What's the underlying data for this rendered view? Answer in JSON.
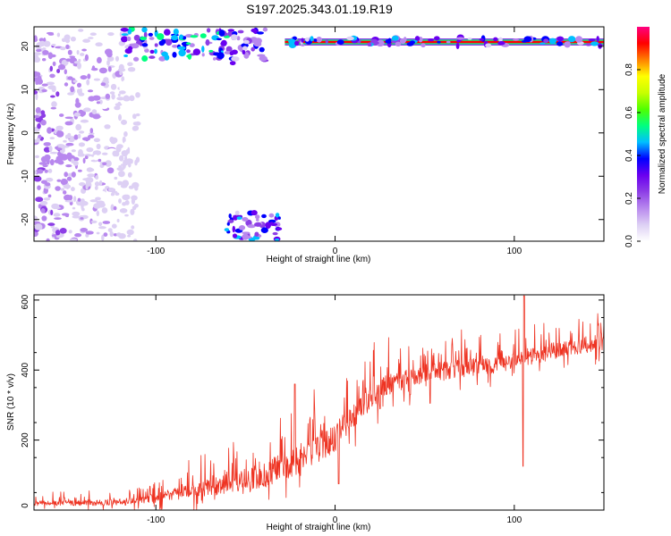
{
  "title": "S197.2025.343.01.19.R19",
  "colors": {
    "snr_line": "#ee3322",
    "background": "#ffffff",
    "colormap": [
      "#ffffff",
      "#ddd0f4",
      "#b888ee",
      "#8d3ee6",
      "#6a00f0",
      "#0000ff",
      "#00bfff",
      "#00ff80",
      "#50ff00",
      "#c8ff00",
      "#ffff00",
      "#ff8000",
      "#ff0000",
      "#ff0080"
    ]
  },
  "chart_data": [
    {
      "type": "heatmap",
      "name": "spectrogram",
      "title": "S197.2025.343.01.19.R19",
      "xlabel": "Height of straight line (km)",
      "ylabel": "Frequency (Hz)",
      "xlim": [
        -168,
        150
      ],
      "ylim": [
        -25,
        24.5
      ],
      "xticks": [
        -100,
        0,
        100
      ],
      "yticks": [
        -20,
        -10,
        0,
        10,
        20
      ],
      "colorbar": {
        "label": "Normalized spectral amplitude",
        "range": [
          0,
          1
        ],
        "ticks": [
          0.0,
          0.2,
          0.4,
          0.6,
          0.8
        ]
      },
      "features": [
        {
          "description": "diffuse noise",
          "x": [
            -168,
            -110
          ],
          "freq": [
            -25,
            24
          ],
          "amplitude": 0.15
        },
        {
          "description": "bright patches near top",
          "x": [
            -118,
            -58
          ],
          "freq": [
            17,
            24
          ],
          "amplitude": 0.35
        },
        {
          "description": "patches near top",
          "x": [
            -58,
            -38
          ],
          "freq": [
            16,
            24
          ],
          "amplitude": 0.25
        },
        {
          "description": "patches near bottom",
          "x": [
            -62,
            -30
          ],
          "freq": [
            -25,
            -18
          ],
          "amplitude": 0.3
        },
        {
          "description": "carrier line",
          "x": [
            -28,
            150
          ],
          "freq": 21,
          "amplitude": 0.95
        },
        {
          "description": "line edges",
          "x": [
            -28,
            150
          ],
          "freq": [
            20,
            22
          ],
          "amplitude": 0.3
        }
      ]
    },
    {
      "type": "line",
      "name": "snr",
      "xlabel": "Height of straight line (km)",
      "ylabel": "SNR (10 * v/v)",
      "xlim": [
        -168,
        150
      ],
      "ylim": [
        0,
        615
      ],
      "xticks": [
        -100,
        0,
        100
      ],
      "yticks": [
        0,
        200,
        400,
        600
      ],
      "trend": {
        "x": [
          -168,
          -120,
          -100,
          -80,
          -60,
          -40,
          -20,
          -10,
          0,
          10,
          20,
          30,
          50,
          70,
          90,
          110,
          130,
          150
        ],
        "y": [
          20,
          22,
          35,
          55,
          75,
          100,
          140,
          175,
          210,
          260,
          320,
          360,
          390,
          405,
          415,
          440,
          465,
          480
        ]
      },
      "spread": {
        "x": [
          -168,
          -120,
          -100,
          -80,
          -60,
          -40,
          -20,
          0,
          20,
          50,
          100,
          150
        ],
        "y": [
          12,
          15,
          22,
          35,
          45,
          60,
          80,
          70,
          55,
          45,
          40,
          40
        ]
      },
      "dips": [
        {
          "x": 105,
          "y": 125
        },
        {
          "x": 2,
          "y": 75
        },
        {
          "x": 53,
          "y": 305
        },
        {
          "x": 42,
          "y": 330
        }
      ],
      "peaks": [
        {
          "x": 105,
          "y": 612
        },
        {
          "x": -23,
          "y": 360
        }
      ]
    }
  ]
}
